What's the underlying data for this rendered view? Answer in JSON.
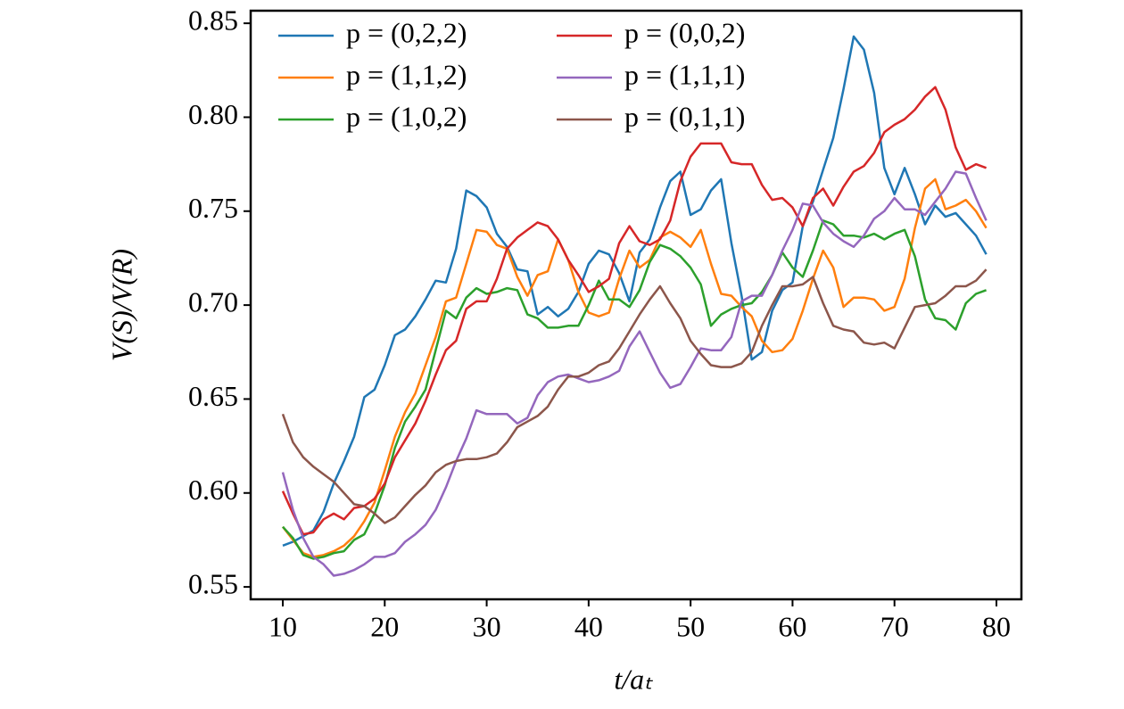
{
  "chart_data": {
    "type": "line",
    "xlabel": "t/aₜ",
    "ylabel": "V(S)/V(R)",
    "x": [
      10,
      11,
      12,
      13,
      14,
      15,
      16,
      17,
      18,
      19,
      20,
      21,
      22,
      23,
      24,
      25,
      26,
      27,
      28,
      29,
      30,
      31,
      32,
      33,
      34,
      35,
      36,
      37,
      38,
      39,
      40,
      41,
      42,
      43,
      44,
      45,
      46,
      47,
      48,
      49,
      50,
      51,
      52,
      53,
      54,
      55,
      56,
      57,
      58,
      59,
      60,
      61,
      62,
      63,
      64,
      65,
      66,
      67,
      68,
      69,
      70,
      71,
      72,
      73,
      74,
      75,
      76,
      77,
      78,
      79
    ],
    "series": [
      {
        "name": "p = (0,2,2)",
        "color": "#1f77b4",
        "values": [
          0.572,
          0.574,
          0.577,
          0.58,
          0.59,
          0.605,
          0.617,
          0.63,
          0.651,
          0.655,
          0.668,
          0.684,
          0.687,
          0.694,
          0.703,
          0.713,
          0.712,
          0.73,
          0.761,
          0.758,
          0.752,
          0.738,
          0.731,
          0.719,
          0.718,
          0.695,
          0.699,
          0.694,
          0.698,
          0.707,
          0.722,
          0.729,
          0.727,
          0.717,
          0.702,
          0.728,
          0.735,
          0.752,
          0.766,
          0.771,
          0.748,
          0.751,
          0.761,
          0.767,
          0.733,
          0.705,
          0.671,
          0.675,
          0.697,
          0.708,
          0.712,
          0.742,
          0.755,
          0.772,
          0.789,
          0.815,
          0.843,
          0.836,
          0.813,
          0.773,
          0.759,
          0.773,
          0.759,
          0.743,
          0.753,
          0.747,
          0.749,
          0.743,
          0.737,
          0.727
        ]
      },
      {
        "name": "p = (1,1,2)",
        "color": "#ff7f0e",
        "values": [
          0.582,
          0.575,
          0.568,
          0.566,
          0.567,
          0.569,
          0.572,
          0.577,
          0.585,
          0.595,
          0.612,
          0.63,
          0.643,
          0.653,
          0.668,
          0.683,
          0.702,
          0.704,
          0.722,
          0.74,
          0.739,
          0.732,
          0.73,
          0.715,
          0.705,
          0.716,
          0.718,
          0.735,
          0.724,
          0.707,
          0.696,
          0.694,
          0.696,
          0.714,
          0.729,
          0.72,
          0.724,
          0.736,
          0.739,
          0.736,
          0.731,
          0.74,
          0.722,
          0.706,
          0.705,
          0.699,
          0.694,
          0.681,
          0.675,
          0.676,
          0.682,
          0.697,
          0.714,
          0.729,
          0.72,
          0.699,
          0.704,
          0.704,
          0.703,
          0.697,
          0.699,
          0.714,
          0.741,
          0.762,
          0.767,
          0.751,
          0.753,
          0.756,
          0.75,
          0.741
        ]
      },
      {
        "name": "p = (1,0,2)",
        "color": "#2ca02c",
        "values": [
          0.582,
          0.576,
          0.567,
          0.565,
          0.566,
          0.568,
          0.569,
          0.575,
          0.578,
          0.589,
          0.604,
          0.624,
          0.638,
          0.646,
          0.655,
          0.676,
          0.697,
          0.693,
          0.704,
          0.709,
          0.706,
          0.707,
          0.709,
          0.708,
          0.695,
          0.693,
          0.688,
          0.688,
          0.689,
          0.689,
          0.7,
          0.713,
          0.703,
          0.703,
          0.699,
          0.708,
          0.723,
          0.732,
          0.73,
          0.726,
          0.72,
          0.711,
          0.689,
          0.695,
          0.698,
          0.7,
          0.701,
          0.707,
          0.716,
          0.728,
          0.72,
          0.715,
          0.729,
          0.745,
          0.743,
          0.737,
          0.737,
          0.736,
          0.738,
          0.735,
          0.738,
          0.74,
          0.726,
          0.703,
          0.693,
          0.692,
          0.687,
          0.701,
          0.706,
          0.708
        ]
      },
      {
        "name": "p = (0,0,2)",
        "color": "#d62728",
        "values": [
          0.601,
          0.589,
          0.578,
          0.579,
          0.586,
          0.589,
          0.586,
          0.592,
          0.593,
          0.597,
          0.605,
          0.619,
          0.628,
          0.637,
          0.649,
          0.663,
          0.676,
          0.681,
          0.698,
          0.702,
          0.702,
          0.714,
          0.73,
          0.736,
          0.74,
          0.744,
          0.742,
          0.735,
          0.724,
          0.716,
          0.707,
          0.71,
          0.714,
          0.733,
          0.742,
          0.734,
          0.732,
          0.735,
          0.745,
          0.766,
          0.779,
          0.786,
          0.786,
          0.786,
          0.776,
          0.775,
          0.775,
          0.764,
          0.756,
          0.757,
          0.752,
          0.742,
          0.757,
          0.762,
          0.753,
          0.763,
          0.771,
          0.774,
          0.781,
          0.792,
          0.796,
          0.799,
          0.804,
          0.811,
          0.816,
          0.804,
          0.784,
          0.772,
          0.775,
          0.773
        ]
      },
      {
        "name": "p = (1,1,1)",
        "color": "#9467bd",
        "values": [
          0.611,
          0.591,
          0.576,
          0.566,
          0.562,
          0.556,
          0.557,
          0.559,
          0.562,
          0.566,
          0.566,
          0.568,
          0.574,
          0.578,
          0.583,
          0.591,
          0.603,
          0.617,
          0.629,
          0.644,
          0.642,
          0.642,
          0.642,
          0.637,
          0.64,
          0.652,
          0.659,
          0.662,
          0.663,
          0.661,
          0.659,
          0.66,
          0.662,
          0.665,
          0.678,
          0.686,
          0.675,
          0.664,
          0.656,
          0.658,
          0.667,
          0.677,
          0.676,
          0.676,
          0.683,
          0.702,
          0.705,
          0.705,
          0.716,
          0.729,
          0.74,
          0.754,
          0.753,
          0.744,
          0.738,
          0.734,
          0.731,
          0.737,
          0.746,
          0.75,
          0.757,
          0.751,
          0.751,
          0.748,
          0.755,
          0.762,
          0.771,
          0.77,
          0.757,
          0.745
        ]
      },
      {
        "name": "p = (0,1,1)",
        "color": "#8c564b",
        "values": [
          0.642,
          0.627,
          0.619,
          0.614,
          0.61,
          0.606,
          0.6,
          0.594,
          0.593,
          0.589,
          0.584,
          0.587,
          0.593,
          0.599,
          0.604,
          0.611,
          0.615,
          0.617,
          0.618,
          0.618,
          0.619,
          0.621,
          0.627,
          0.635,
          0.638,
          0.641,
          0.646,
          0.655,
          0.662,
          0.662,
          0.664,
          0.668,
          0.67,
          0.677,
          0.686,
          0.695,
          0.703,
          0.71,
          0.701,
          0.693,
          0.681,
          0.674,
          0.668,
          0.667,
          0.667,
          0.669,
          0.675,
          0.689,
          0.7,
          0.71,
          0.71,
          0.711,
          0.715,
          0.701,
          0.689,
          0.687,
          0.686,
          0.68,
          0.679,
          0.68,
          0.677,
          0.688,
          0.699,
          0.7,
          0.701,
          0.705,
          0.71,
          0.71,
          0.713,
          0.719
        ]
      }
    ],
    "xlim": [
      6.85,
      82.45
    ],
    "ylim": [
      0.5434,
      0.8567
    ],
    "xticks": [
      10,
      20,
      30,
      40,
      50,
      60,
      70,
      80
    ],
    "yticks": [
      {
        "value": 0.55,
        "label": "0.55"
      },
      {
        "value": 0.6,
        "label": "0.60"
      },
      0.65,
      {
        "value": 0.7,
        "label": "0.70"
      },
      0.75,
      {
        "value": 0.8,
        "label": "0.80"
      },
      0.85
    ],
    "legend": "upper left",
    "grid": false
  }
}
